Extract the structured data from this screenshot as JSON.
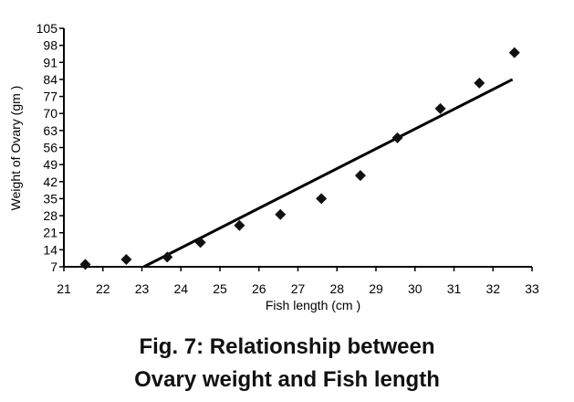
{
  "chart_data": {
    "type": "scatter",
    "xlabel": "Fish length (cm )",
    "ylabel": "Weight of Ovary (gm )",
    "xlim": [
      21,
      33
    ],
    "ylim": [
      7,
      105
    ],
    "x_ticks": [
      "21",
      "22",
      "23",
      "24",
      "25",
      "26",
      "27",
      "28",
      "29",
      "30",
      "31",
      "32",
      "33"
    ],
    "y_ticks": [
      "7",
      "14",
      "21",
      "28",
      "35",
      "42",
      "49",
      "56",
      "63",
      "70",
      "77",
      "84",
      "91",
      "98",
      "105"
    ],
    "grid": false,
    "legend": "none",
    "series": [
      {
        "points": [
          {
            "x": 21.55,
            "y": 8
          },
          {
            "x": 22.6,
            "y": 10
          },
          {
            "x": 23.65,
            "y": 11
          },
          {
            "x": 24.5,
            "y": 17
          },
          {
            "x": 25.5,
            "y": 24
          },
          {
            "x": 26.55,
            "y": 28.5
          },
          {
            "x": 27.6,
            "y": 35
          },
          {
            "x": 28.6,
            "y": 44.5
          },
          {
            "x": 29.55,
            "y": 60
          },
          {
            "x": 30.65,
            "y": 72
          },
          {
            "x": 31.65,
            "y": 82.5
          },
          {
            "x": 32.55,
            "y": 95
          }
        ]
      }
    ],
    "trendline": {
      "x": [
        23.05,
        32.5
      ],
      "y": [
        7,
        84
      ]
    },
    "colors": {
      "marker": "#111111",
      "line": "#000000",
      "axis": "#000000"
    }
  },
  "caption": {
    "line1": "Fig. 7: Relationship between",
    "line2": "Ovary weight and Fish length"
  }
}
